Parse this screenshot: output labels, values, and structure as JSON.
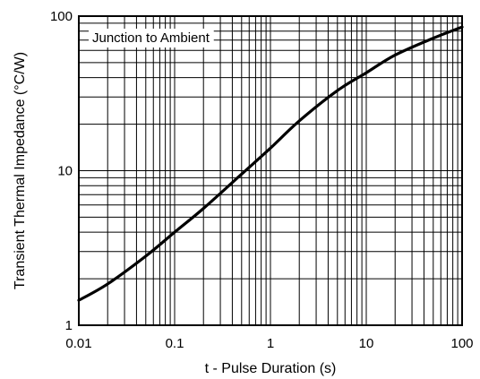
{
  "chart_data": {
    "type": "line",
    "xscale": "log",
    "yscale": "log",
    "xlim": [
      0.01,
      100
    ],
    "ylim": [
      1,
      100
    ],
    "xlabel": "t - Pulse Duration (s)",
    "ylabel": "Transient Thermal Impedance (°C/W)",
    "annotation": "Junction to Ambient",
    "grid": true,
    "x_ticks": [
      0.01,
      0.1,
      1,
      10,
      100
    ],
    "x_tick_labels": [
      "0.01",
      "0.1",
      "1",
      "10",
      "100"
    ],
    "y_ticks": [
      1,
      10,
      100
    ],
    "y_tick_labels": [
      "1",
      "10",
      "100"
    ],
    "series": [
      {
        "x": [
          0.01,
          0.02,
          0.05,
          0.1,
          0.2,
          0.5,
          1,
          2,
          5,
          10,
          20,
          50,
          100
        ],
        "y": [
          1.45,
          1.85,
          2.8,
          4.0,
          5.7,
          9.5,
          14,
          21,
          33,
          43,
          56,
          72,
          85
        ]
      }
    ]
  }
}
